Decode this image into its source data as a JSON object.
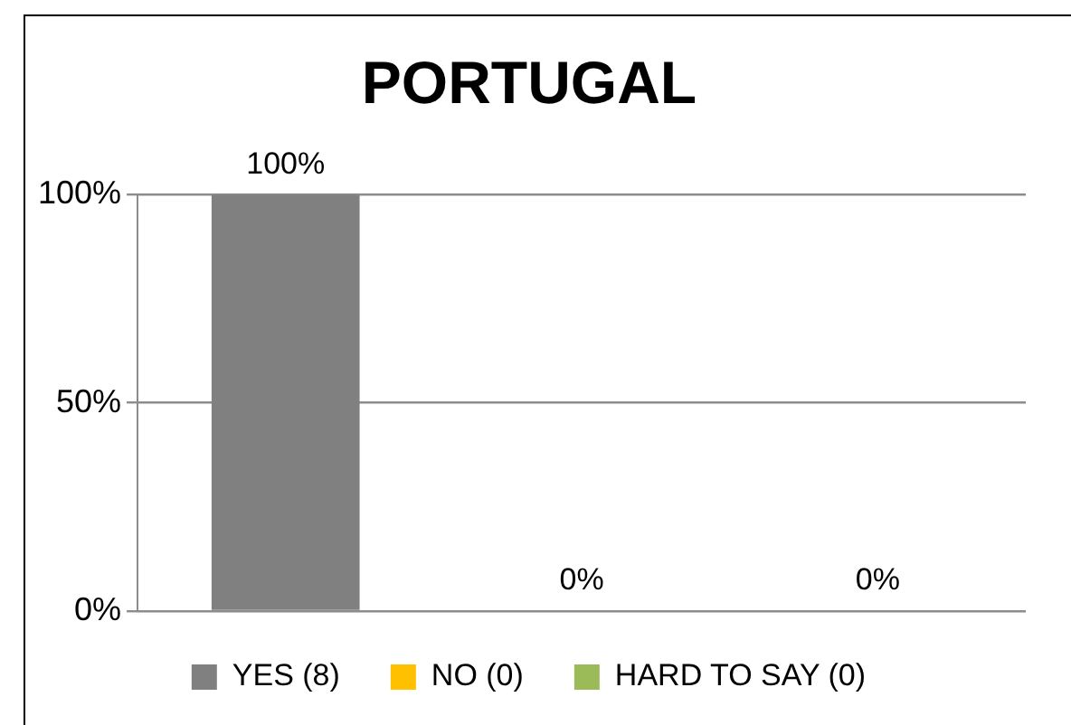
{
  "chart_data": {
    "type": "bar",
    "title": "PORTUGAL",
    "categories": [
      null,
      null,
      null
    ],
    "series": [
      {
        "name": "YES (8)",
        "color": "#808080",
        "values": [
          100,
          null,
          null
        ],
        "value_labels": [
          "100%",
          null,
          null
        ]
      },
      {
        "name": "NO (0)",
        "color": "#ffc000",
        "values": [
          null,
          0,
          null
        ],
        "value_labels": [
          null,
          "0%",
          null
        ]
      },
      {
        "name": "HARD TO SAY (0)",
        "color": "#9bbb59",
        "values": [
          null,
          null,
          0
        ],
        "value_labels": [
          null,
          null,
          "0%"
        ]
      }
    ],
    "ylim": [
      0,
      100
    ],
    "yticks": [
      {
        "value": 0,
        "label": "0%"
      },
      {
        "value": 50,
        "label": "50%"
      },
      {
        "value": 100,
        "label": "100%"
      }
    ],
    "grid": "y",
    "legend": "bottom",
    "tick_labels": "y"
  }
}
